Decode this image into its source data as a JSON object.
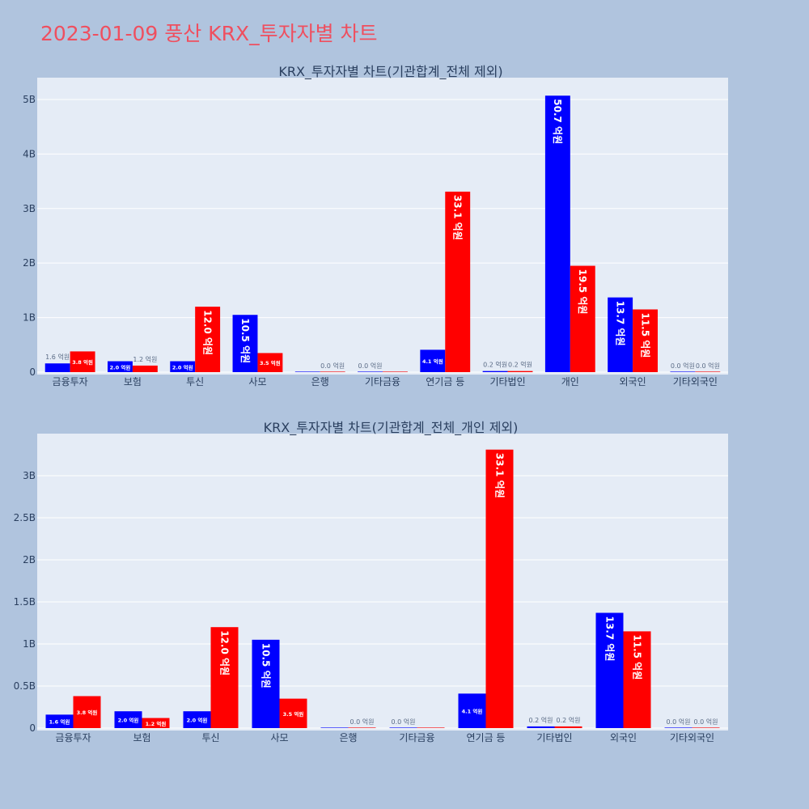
{
  "page": {
    "title": "2023-01-09 풍산 KRX_투자자별 차트"
  },
  "colors": {
    "buy": "#0000ff",
    "sell": "#ff0000",
    "plot_bg": "#e5ecf6",
    "page_bg": "#b0c4de",
    "title": "#ef4f5f"
  },
  "chart_data": [
    {
      "type": "bar",
      "title": "KRX_투자자별 차트(기관합계_전체 제외)",
      "categories": [
        "금융투자",
        "보험",
        "투신",
        "사모",
        "은행",
        "기타금융",
        "연기금 등",
        "기타법인",
        "개인",
        "외국인",
        "기타외국인"
      ],
      "series": [
        {
          "values": [
            0.16,
            0.2,
            0.2,
            1.05,
            0.0,
            0.0,
            0.41,
            0.02,
            5.07,
            1.37,
            0.0
          ],
          "labels": [
            "1.6 억원",
            "2.0 억원",
            "2.0 억원",
            "10.5 억원",
            "",
            "0.0 억원",
            "4.1 억원",
            "0.2 억원",
            "50.7 억원",
            "13.7 억원",
            "0.0 억원"
          ]
        },
        {
          "values": [
            0.38,
            0.12,
            1.2,
            0.35,
            0.0,
            0.0,
            3.31,
            0.02,
            1.95,
            1.15,
            0.0
          ],
          "labels": [
            "3.8 억원",
            "1.2 억원",
            "12.0 억원",
            "3.5 억원",
            "0.0 억원",
            "",
            "33.1 억원",
            "0.2 억원",
            "19.5 억원",
            "11.5 억원",
            "0.0 억원"
          ]
        }
      ],
      "ylim": [
        0,
        5.4
      ],
      "yticks": [
        0,
        1,
        2,
        3,
        4,
        5
      ],
      "ytick_labels": [
        "0",
        "1B",
        "2B",
        "3B",
        "4B",
        "5B"
      ],
      "grid": true
    },
    {
      "type": "bar",
      "title": "KRX_투자자별 차트(기관합계_전체_개인 제외)",
      "categories": [
        "금융투자",
        "보험",
        "투신",
        "사모",
        "은행",
        "기타금융",
        "연기금 등",
        "기타법인",
        "외국인",
        "기타외국인"
      ],
      "series": [
        {
          "values": [
            0.16,
            0.2,
            0.2,
            1.05,
            0.0,
            0.0,
            0.41,
            0.02,
            1.37,
            0.0
          ],
          "labels": [
            "1.6 억원",
            "2.0 억원",
            "2.0 억원",
            "10.5 억원",
            "",
            "0.0 억원",
            "4.1 억원",
            "0.2 억원",
            "13.7 억원",
            "0.0 억원"
          ]
        },
        {
          "values": [
            0.38,
            0.12,
            1.2,
            0.35,
            0.0,
            0.0,
            3.31,
            0.02,
            1.15,
            0.0
          ],
          "labels": [
            "3.8 억원",
            "1.2 억원",
            "12.0 억원",
            "3.5 억원",
            "0.0 억원",
            "",
            "33.1 억원",
            "0.2 억원",
            "11.5 억원",
            "0.0 억원"
          ]
        }
      ],
      "ylim": [
        0,
        3.5
      ],
      "yticks": [
        0,
        0.5,
        1,
        1.5,
        2,
        2.5,
        3
      ],
      "ytick_labels": [
        "0",
        "0.5B",
        "1B",
        "1.5B",
        "2B",
        "2.5B",
        "3B"
      ],
      "grid": true
    }
  ]
}
